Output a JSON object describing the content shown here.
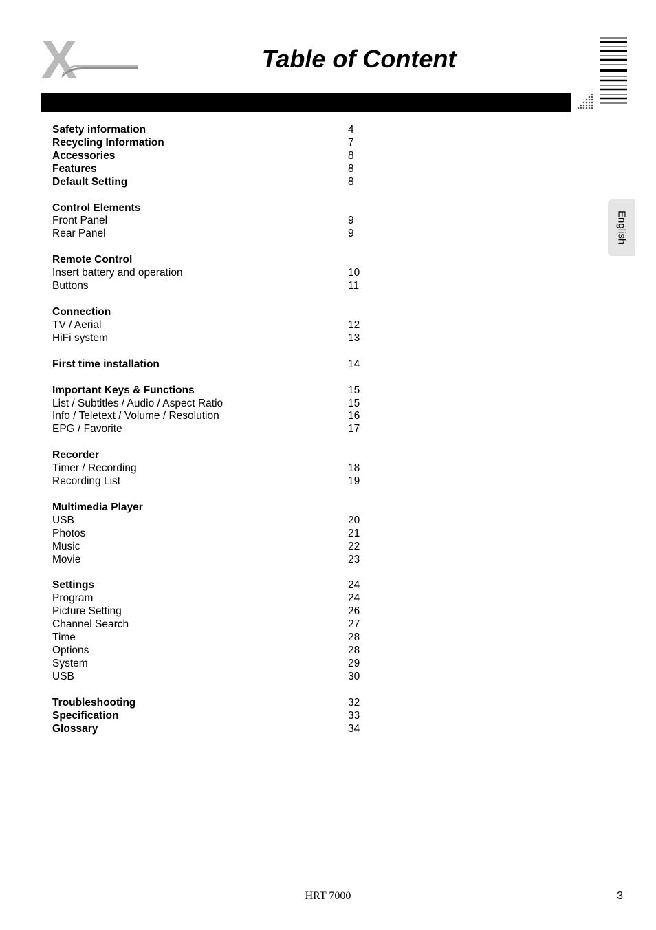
{
  "title": "Table of Content",
  "side_tab": "English",
  "footer_model": "HRT 7000",
  "footer_page": "3",
  "colors": {
    "logo_gray": "#b9b9b9",
    "tab_bg": "#e5e5e5",
    "corner_dots": "#555555",
    "line_color": "#000000"
  },
  "toc": [
    {
      "label": "Safety information",
      "page": "4",
      "bold": true
    },
    {
      "label": "Recycling Information",
      "page": "7",
      "bold": true
    },
    {
      "label": "Accessories",
      "page": "8",
      "bold": true
    },
    {
      "label": "Features",
      "page": "8",
      "bold": true
    },
    {
      "label": "Default Setting",
      "page": "8",
      "bold": true
    },
    {
      "gap": true
    },
    {
      "label": "Control Elements",
      "page": "",
      "bold": true
    },
    {
      "label": "Front Panel",
      "page": "9",
      "bold": false
    },
    {
      "label": "Rear Panel",
      "page": "9",
      "bold": false
    },
    {
      "gap": true
    },
    {
      "label": "Remote Control",
      "page": "",
      "bold": true
    },
    {
      "label": "Insert battery and operation",
      "page": "10",
      "bold": false
    },
    {
      "label": "Buttons",
      "page": "11",
      "bold": false
    },
    {
      "gap": true
    },
    {
      "label": "Connection",
      "page": "",
      "bold": true
    },
    {
      "label": "TV / Aerial",
      "page": "12",
      "bold": false
    },
    {
      "label": "HiFi system",
      "page": "13",
      "bold": false
    },
    {
      "gap": true
    },
    {
      "label": "First time installation",
      "page": "14",
      "bold": true
    },
    {
      "gap": true
    },
    {
      "label": "Important Keys & Functions",
      "page": "15",
      "bold": true
    },
    {
      "label": "List / Subtitles / Audio / Aspect Ratio",
      "page": "15",
      "bold": false
    },
    {
      "label": "Info / Teletext / Volume / Resolution",
      "page": "16",
      "bold": false
    },
    {
      "label": "EPG / Favorite",
      "page": "17",
      "bold": false
    },
    {
      "gap": true
    },
    {
      "label": "Recorder",
      "page": "",
      "bold": true
    },
    {
      "label": "Timer / Recording",
      "page": "18",
      "bold": false
    },
    {
      "label": "Recording List",
      "page": "19",
      "bold": false
    },
    {
      "gap": true
    },
    {
      "label": "Multimedia Player",
      "page": "",
      "bold": true
    },
    {
      "label": "USB",
      "page": "20",
      "bold": false
    },
    {
      "label": "Photos",
      "page": "21",
      "bold": false
    },
    {
      "label": "Music",
      "page": "22",
      "bold": false
    },
    {
      "label": "Movie",
      "page": "23",
      "bold": false
    },
    {
      "gap": true
    },
    {
      "label": "Settings",
      "page": "24",
      "bold": true
    },
    {
      "label": "Program",
      "page": "24",
      "bold": false
    },
    {
      "label": "Picture Setting",
      "page": "26",
      "bold": false
    },
    {
      "label": "Channel Search",
      "page": "27",
      "bold": false
    },
    {
      "label": "Time",
      "page": "28",
      "bold": false
    },
    {
      "label": "Options",
      "page": "28",
      "bold": false
    },
    {
      "label": "System",
      "page": "29",
      "bold": false
    },
    {
      "label": "USB",
      "page": "30",
      "bold": false
    },
    {
      "gap": true
    },
    {
      "label": "Troubleshooting",
      "page": "32",
      "bold": true
    },
    {
      "label": "Specification",
      "page": "33",
      "bold": true
    },
    {
      "label": "Glossary",
      "page": "34",
      "bold": true
    }
  ]
}
